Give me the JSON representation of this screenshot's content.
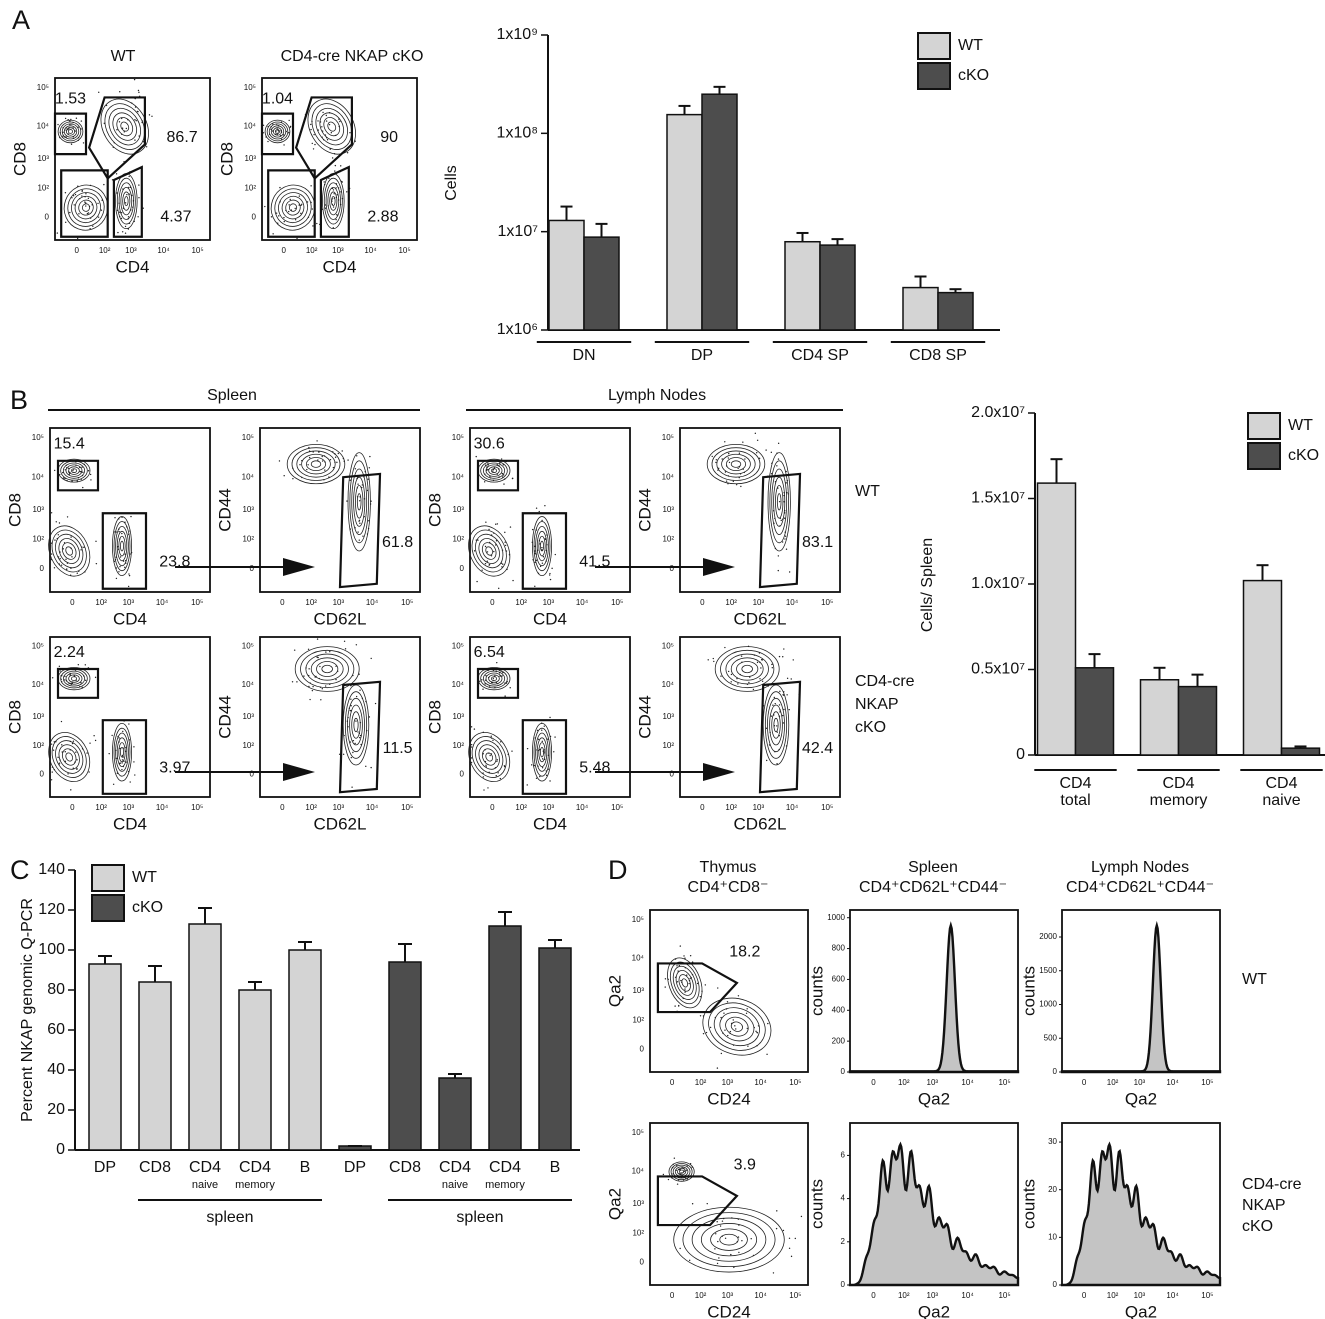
{
  "panels": [
    "A",
    "B",
    "C",
    "D"
  ],
  "flow_ticks": [
    "0",
    "10²",
    "10³",
    "10⁴",
    "10⁵"
  ],
  "panel_a": {
    "titles": [
      "WT",
      "CD4-cre NKAP cKO"
    ],
    "x_label": "CD4",
    "y_label": "CD8",
    "gates": [
      [
        "1.53",
        "86.7",
        "4.37"
      ],
      [
        "1.04",
        "90",
        "2.88"
      ]
    ]
  },
  "panel_b": {
    "headers": [
      "Spleen",
      "Lymph Nodes"
    ],
    "rows": [
      "WT",
      "CD4-cre\nNKAP\ncKO"
    ],
    "labels": {
      "cd8": "CD8",
      "cd4": "CD4",
      "cd44": "CD44",
      "cd62l": "CD62L"
    },
    "gates": [
      [
        [
          "15.4",
          "23.8"
        ],
        [
          "61.8"
        ],
        [
          "30.6",
          "41.5"
        ],
        [
          "83.1"
        ]
      ],
      [
        [
          "2.24",
          "3.97"
        ],
        [
          "11.5"
        ],
        [
          "6.54",
          "5.48"
        ],
        [
          "42.4"
        ]
      ]
    ]
  },
  "panel_d": {
    "titles": [
      "Thymus\nCD4⁺CD8⁻",
      "Spleen\nCD4⁺CD62L⁺CD44⁻",
      "Lymph Nodes\nCD4⁺CD62L⁺CD44⁻"
    ],
    "rows": [
      "WT",
      "CD4-cre\nNKAP\ncKO"
    ],
    "qa2": "Qa2",
    "cd24": "CD24",
    "counts": "counts",
    "gates": [
      "18.2",
      "3.9"
    ],
    "histograms": [
      {
        "ylim": [
          0,
          1050
        ],
        "yticks": [
          0,
          200,
          400,
          600,
          800,
          1000
        ]
      },
      {
        "ylim": [
          0,
          2400
        ],
        "yticks": [
          0,
          500,
          1000,
          1500,
          2000
        ]
      },
      {
        "ylim": [
          0,
          7.5
        ],
        "yticks": [
          0,
          2,
          4,
          6
        ]
      },
      {
        "ylim": [
          0,
          34
        ],
        "yticks": [
          0,
          10,
          20,
          30
        ]
      }
    ]
  },
  "chart_data": [
    {
      "type": "bar",
      "ylabel": "Cells",
      "log_scale": true,
      "legend": "upper right",
      "categories": [
        "DN",
        "DP",
        "CD4 SP",
        "CD8 SP"
      ],
      "series": [
        {
          "name": "WT",
          "color": "#d4d4d4",
          "values": [
            13000000,
            155000000,
            7900000,
            2700000
          ],
          "errors": [
            5000000,
            35000000,
            1800000,
            800000
          ]
        },
        {
          "name": "cKO",
          "color": "#4d4d4d",
          "values": [
            8800000,
            250000000,
            7300000,
            2400000
          ],
          "errors": [
            3200000,
            47000000,
            1100000,
            200000
          ]
        }
      ],
      "ylim": [
        1000000,
        1000000000
      ],
      "yticks": [
        {
          "value": 1000000,
          "label": "1x10⁶"
        },
        {
          "value": 10000000,
          "label": "1x10⁷"
        },
        {
          "value": 100000000,
          "label": "1x10⁸"
        },
        {
          "value": 1000000000,
          "label": "1x10⁹"
        }
      ]
    },
    {
      "type": "bar",
      "ylabel": "Cells/ Spleen",
      "log_scale": false,
      "legend": "upper right",
      "categories": [
        "CD4\ntotal",
        "CD4\nmemory",
        "CD4\nnaive"
      ],
      "series": [
        {
          "name": "WT",
          "color": "#d4d4d4",
          "values": [
            15900000,
            4400000,
            10200000
          ],
          "errors": [
            1400000,
            700000,
            900000
          ]
        },
        {
          "name": "cKO",
          "color": "#4d4d4d",
          "values": [
            5100000,
            4000000,
            400000
          ],
          "errors": [
            800000,
            700000,
            100000
          ]
        }
      ],
      "ylim": [
        0,
        20000000
      ],
      "yticks": [
        0,
        {
          "value": 5000000,
          "label": "0.5x10⁷"
        },
        {
          "value": 10000000,
          "label": "1.0x10⁷"
        },
        {
          "value": 15000000,
          "label": "1.5x10⁷"
        },
        {
          "value": 20000000,
          "label": "2.0x10⁷"
        }
      ]
    },
    {
      "type": "bar",
      "ylabel": "Percent NKAP genomic Q-PCR",
      "log_scale": false,
      "legend": "upper left",
      "categories": [
        "DP",
        "CD8",
        "CD4\nnaive",
        "CD4\nmemory",
        "B",
        "DP",
        "CD8",
        "CD4\nnaive",
        "CD4\nmemory",
        "B"
      ],
      "group_labels": [
        "spleen",
        "spleen"
      ],
      "series": [
        {
          "name": "WT",
          "color": "#d4d4d4",
          "values": [
            93,
            84,
            113,
            80,
            100,
            null,
            null,
            null,
            null,
            null
          ],
          "errors": [
            4,
            8,
            8,
            4,
            4,
            null,
            null,
            null,
            null,
            null
          ]
        },
        {
          "name": "cKO",
          "color": "#4d4d4d",
          "values": [
            null,
            null,
            null,
            null,
            null,
            2,
            94,
            36,
            112,
            101
          ],
          "errors": [
            null,
            null,
            null,
            null,
            null,
            0,
            9,
            2,
            7,
            4
          ]
        }
      ],
      "ylim": [
        0,
        140
      ],
      "yticks": [
        0,
        20,
        40,
        60,
        80,
        100,
        120,
        140
      ]
    }
  ]
}
